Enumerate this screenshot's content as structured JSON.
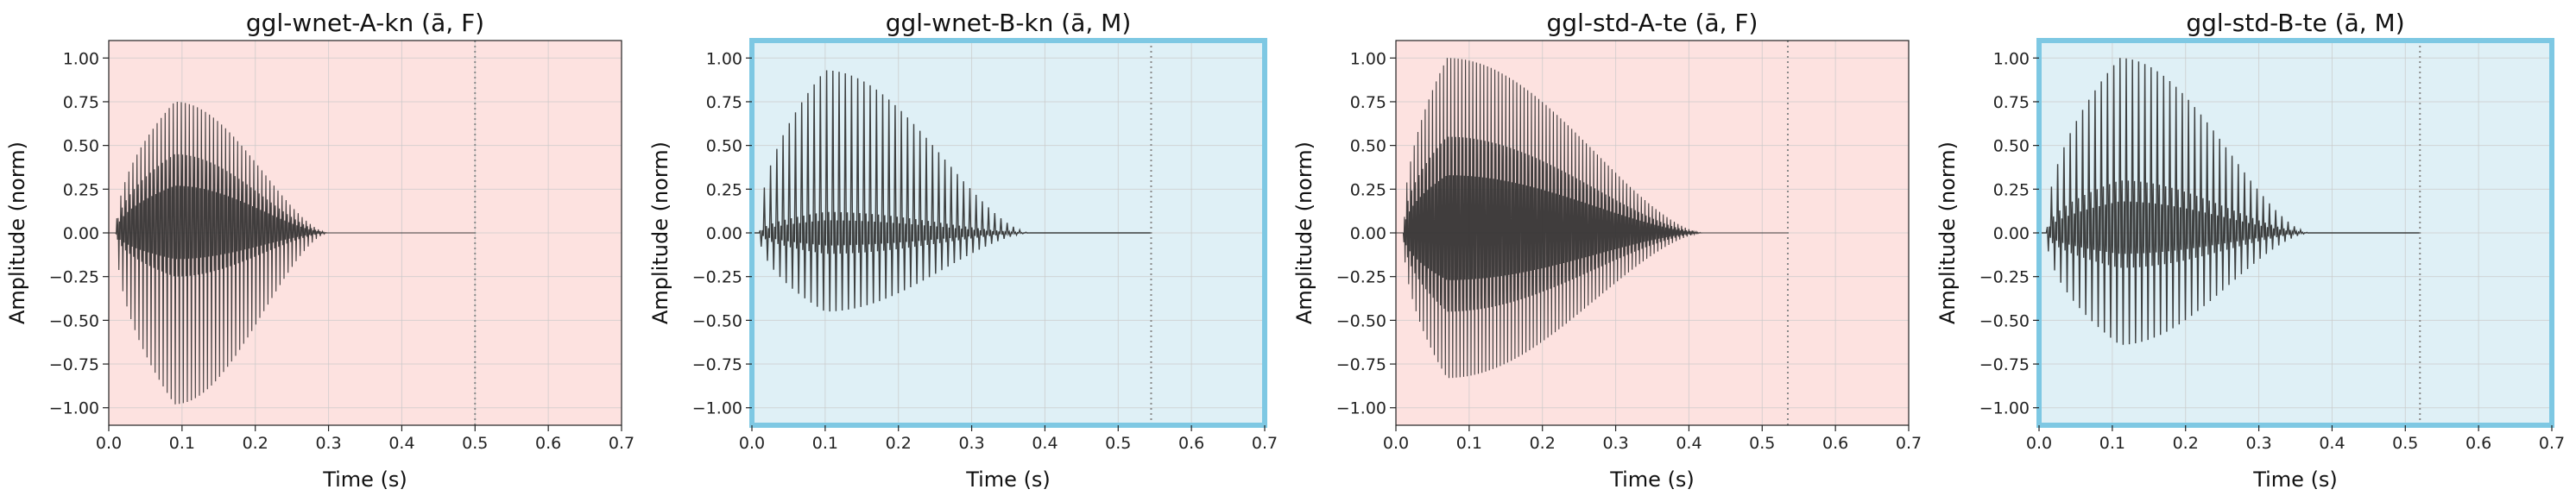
{
  "figure": {
    "x_tick_labels": [
      "0.0",
      "0.1",
      "0.2",
      "0.3",
      "0.4",
      "0.5",
      "0.6",
      "0.7"
    ],
    "y_tick_labels": [
      "1.00",
      "0.75",
      "0.50",
      "0.25",
      "0.00",
      "−0.25",
      "−0.50",
      "−0.75",
      "−1.00"
    ]
  },
  "chart_data": [
    {
      "type": "line",
      "title": "ggl-wnet-A-kn (ā, F)",
      "xlabel": "Time (s)",
      "ylabel": "Amplitude (norm)",
      "xlim": [
        0,
        0.7
      ],
      "ylim": [
        -1.1,
        1.1
      ],
      "x_ticks": [
        0,
        0.1,
        0.2,
        0.3,
        0.4,
        0.5,
        0.6,
        0.7
      ],
      "y_ticks": [
        1.0,
        0.75,
        0.5,
        0.25,
        0.0,
        -0.25,
        -0.5,
        -0.75,
        -1.0
      ],
      "grid": true,
      "background_color": "#fde2e0",
      "highlighted_border": false,
      "end_marker_x": 0.5,
      "waveform": {
        "onset": 0.01,
        "peak_time": 0.09,
        "decay_end": 0.3,
        "pos_peak": 0.75,
        "neg_peak": -0.98,
        "inner_pos": 0.45,
        "inner_neg": -0.25,
        "period": 0.0055,
        "dense": true
      }
    },
    {
      "type": "line",
      "title": "ggl-wnet-B-kn (ā, M)",
      "xlabel": "Time (s)",
      "ylabel": "Amplitude (norm)",
      "xlim": [
        0,
        0.7
      ],
      "ylim": [
        -1.1,
        1.1
      ],
      "x_ticks": [
        0,
        0.1,
        0.2,
        0.3,
        0.4,
        0.5,
        0.6,
        0.7
      ],
      "y_ticks": [
        1.0,
        0.75,
        0.5,
        0.25,
        0.0,
        -0.25,
        -0.5,
        -0.75,
        -1.0
      ],
      "grid": true,
      "background_color": "#dff0f6",
      "highlighted_border": true,
      "end_marker_x": 0.545,
      "waveform": {
        "onset": 0.01,
        "peak_time": 0.1,
        "decay_end": 0.38,
        "pos_peak": 0.93,
        "neg_peak": -0.45,
        "inner_pos": 0.12,
        "inner_neg": -0.12,
        "period": 0.0085,
        "dense": false
      }
    },
    {
      "type": "line",
      "title": "ggl-std-A-te (ā, F)",
      "xlabel": "Time (s)",
      "ylabel": "Amplitude (norm)",
      "xlim": [
        0,
        0.7
      ],
      "ylim": [
        -1.1,
        1.1
      ],
      "x_ticks": [
        0,
        0.1,
        0.2,
        0.3,
        0.4,
        0.5,
        0.6,
        0.7
      ],
      "y_ticks": [
        1.0,
        0.75,
        0.5,
        0.25,
        0.0,
        -0.25,
        -0.5,
        -0.75,
        -1.0
      ],
      "grid": true,
      "background_color": "#fde2e0",
      "highlighted_border": false,
      "end_marker_x": 0.535,
      "waveform": {
        "onset": 0.01,
        "peak_time": 0.07,
        "decay_end": 0.42,
        "pos_peak": 1.0,
        "neg_peak": -0.83,
        "inner_pos": 0.55,
        "inner_neg": -0.45,
        "period": 0.005,
        "dense": true
      }
    },
    {
      "type": "line",
      "title": "ggl-std-B-te (ā, M)",
      "xlabel": "Time (s)",
      "ylabel": "Amplitude (norm)",
      "xlim": [
        0,
        0.7
      ],
      "ylim": [
        -1.1,
        1.1
      ],
      "x_ticks": [
        0,
        0.1,
        0.2,
        0.3,
        0.4,
        0.5,
        0.6,
        0.7
      ],
      "y_ticks": [
        1.0,
        0.75,
        0.5,
        0.25,
        0.0,
        -0.25,
        -0.5,
        -0.75,
        -1.0
      ],
      "grid": true,
      "background_color": "#dff0f6",
      "highlighted_border": true,
      "end_marker_x": 0.52,
      "waveform": {
        "onset": 0.01,
        "peak_time": 0.11,
        "decay_end": 0.37,
        "pos_peak": 1.0,
        "neg_peak": -0.64,
        "inner_pos": 0.3,
        "inner_neg": -0.2,
        "period": 0.0085,
        "dense": false
      }
    }
  ]
}
